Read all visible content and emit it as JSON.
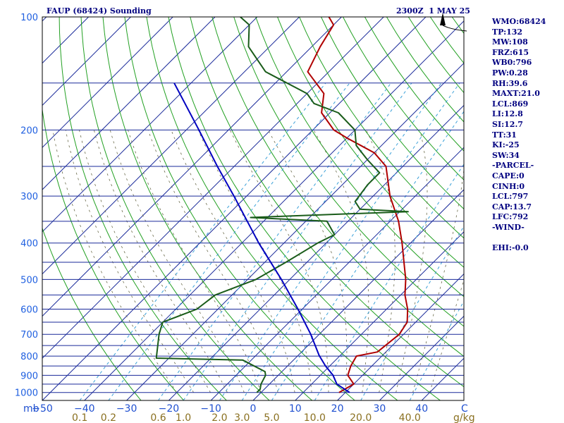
{
  "header": {
    "title": "FAUP (68424) Sounding",
    "time": "2300Z  1 MAY 25"
  },
  "indices": [
    "WMO:68424",
    "TP:132",
    "MW:108",
    "FRZ:615",
    "WB0:796",
    "PW:0.28",
    "RH:39.6",
    "MAXT:21.0",
    "LCL:869",
    "LI:12.8",
    "SI:12.7",
    "TT:31",
    "KI:-25",
    "SW:34",
    "-PARCEL-",
    "CAPE:0",
    "CINH:0",
    "LCL:797",
    "CAP:13.7",
    "LFC:792",
    "-WIND-",
    "",
    "EHI:-0.0"
  ],
  "chart_data": {
    "type": "line",
    "chart_kind": "Skew-T log-P sounding",
    "pressure_axis_unit": "mb",
    "temperature_axis_unit": "C",
    "mixing_ratio_unit": "g/kg",
    "pressure_range": [
      1050,
      100
    ],
    "temperature_range": [
      -50,
      50
    ],
    "pressure_labels": [
      100,
      200,
      300,
      400,
      500,
      600,
      700,
      800,
      900,
      1000
    ],
    "pressure_lines": [
      100,
      150,
      200,
      250,
      300,
      350,
      400,
      450,
      500,
      550,
      600,
      650,
      700,
      750,
      800,
      850,
      900,
      950,
      1000,
      1050
    ],
    "temperature_labels": [
      "−50",
      "−40",
      "−30",
      "−20",
      "−10",
      "0",
      "10",
      "20",
      "30",
      "40"
    ],
    "temperature_ticks": [
      -50,
      -40,
      -30,
      -20,
      -10,
      0,
      10,
      20,
      30,
      40
    ],
    "mixing_ratio_labels": [
      "0.1",
      "0.2",
      "0.6",
      "1.0",
      "2.0",
      "3.0",
      "5.0",
      "10.0",
      "20.0",
      "40.0"
    ],
    "mixing_ratio_values": [
      0.1,
      0.2,
      0.6,
      1.0,
      2.0,
      3.0,
      5.0,
      10.0,
      20.0,
      40.0
    ],
    "series": [
      {
        "name": "Temperature",
        "color": "#b00000",
        "points": [
          [
            1000,
            18.5
          ],
          [
            950,
            20
          ],
          [
            900,
            16.5
          ],
          [
            850,
            15
          ],
          [
            800,
            14
          ],
          [
            780,
            18
          ],
          [
            700,
            19
          ],
          [
            650,
            18
          ],
          [
            600,
            15
          ],
          [
            550,
            11
          ],
          [
            500,
            7.5
          ],
          [
            450,
            3
          ],
          [
            400,
            -2
          ],
          [
            350,
            -8
          ],
          [
            300,
            -16
          ],
          [
            250,
            -24
          ],
          [
            230,
            -30
          ],
          [
            210,
            -40
          ],
          [
            200,
            -45
          ],
          [
            180,
            -52
          ],
          [
            160,
            -56
          ],
          [
            140,
            -65
          ],
          [
            120,
            -68
          ],
          [
            105,
            -70
          ],
          [
            100,
            -73
          ]
        ]
      },
      {
        "name": "Dewpoint",
        "color": "#1a5c1a",
        "points": [
          [
            1000,
            -1
          ],
          [
            980,
            -1
          ],
          [
            950,
            -2
          ],
          [
            900,
            -3
          ],
          [
            880,
            -4
          ],
          [
            820,
            -12
          ],
          [
            810,
            -33
          ],
          [
            700,
            -38
          ],
          [
            650,
            -40
          ],
          [
            600,
            -35
          ],
          [
            550,
            -34
          ],
          [
            500,
            -28
          ],
          [
            450,
            -25
          ],
          [
            400,
            -22
          ],
          [
            380,
            -20
          ],
          [
            350,
            -25
          ],
          [
            342,
            -44
          ],
          [
            330,
            -8
          ],
          [
            325,
            -20
          ],
          [
            310,
            -23
          ],
          [
            280,
            -24
          ],
          [
            260,
            -24
          ],
          [
            240,
            -30
          ],
          [
            220,
            -36
          ],
          [
            200,
            -40
          ],
          [
            180,
            -48
          ],
          [
            170,
            -56
          ],
          [
            160,
            -60
          ],
          [
            140,
            -75
          ],
          [
            120,
            -85
          ],
          [
            105,
            -90
          ],
          [
            100,
            -94
          ]
        ]
      },
      {
        "name": "Parcel",
        "color": "#0000c0",
        "points": [
          [
            1000,
            21
          ],
          [
            950,
            16
          ],
          [
            900,
            13
          ],
          [
            850,
            9
          ],
          [
            797,
            5
          ],
          [
            700,
            -2
          ],
          [
            600,
            -11
          ],
          [
            500,
            -22
          ],
          [
            400,
            -36
          ],
          [
            300,
            -53
          ],
          [
            250,
            -64
          ],
          [
            200,
            -77
          ],
          [
            150,
            -94
          ]
        ]
      }
    ]
  }
}
